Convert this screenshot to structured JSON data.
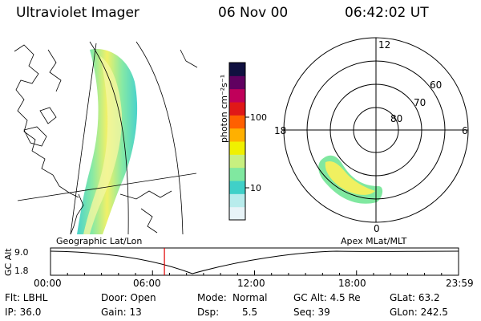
{
  "header": {
    "title": "Ultraviolet Imager",
    "date": "06 Nov 00",
    "time": "06:42:02 UT"
  },
  "colorbar": {
    "unit_label": "photon cm⁻²s⁻¹",
    "tick_labels": [
      "100",
      "10"
    ],
    "colors": [
      "#e8f4f8",
      "#b8ecec",
      "#40d0c8",
      "#80e8a0",
      "#c8f080",
      "#f0f000",
      "#ffb000",
      "#ff6000",
      "#e01818",
      "#c0005a",
      "#600060",
      "#101040"
    ]
  },
  "polar": {
    "mlt_labels": {
      "top": "12",
      "left": "18",
      "right": "6",
      "bottom": "0"
    },
    "lat_labels": [
      "60",
      "70",
      "80"
    ]
  },
  "captions": {
    "geo": "Geographic Lat/Lon",
    "apex": "Apex MLat/MLT"
  },
  "timeline": {
    "ylabel": "GC Alt",
    "y_ticks": [
      "9.0",
      "1.8"
    ],
    "x_ticks": [
      "00:00",
      "06:00",
      "12:00",
      "18:00",
      "23:59"
    ],
    "marker_time_hours": 6.7
  },
  "info": {
    "col1": {
      "filter": "Flt: LBHL",
      "ip": "IP: 36.0"
    },
    "col2": {
      "door": "Door: Open",
      "gain": "Gain: 13"
    },
    "col3": {
      "mode_label": "Mode:",
      "mode_value": "Normal",
      "dsp_label": "Dsp:",
      "dsp_value": "5.5"
    },
    "col4": {
      "gcalt": "GC Alt: 4.5 Re",
      "seq": "Seq: 39"
    },
    "col5": {
      "glat": "GLat: 63.2",
      "glon": "GLon: 242.5"
    }
  }
}
